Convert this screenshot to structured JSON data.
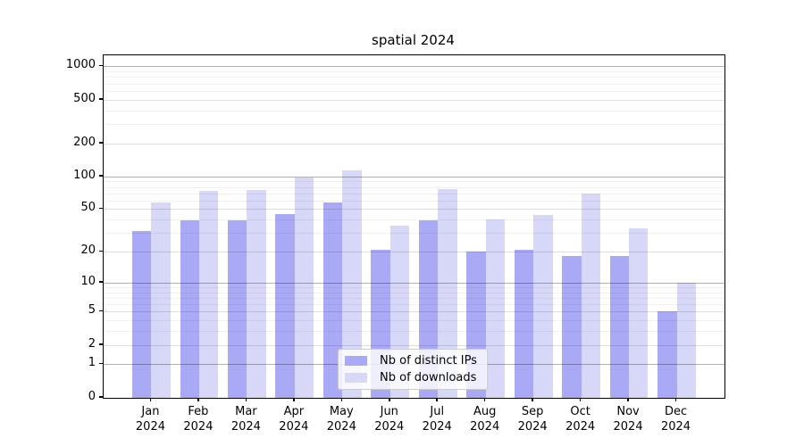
{
  "title": "spatial 2024",
  "chart_data": {
    "type": "bar",
    "title": "spatial 2024",
    "categories": [
      "Jan\n2024",
      "Feb\n2024",
      "Mar\n2024",
      "Apr\n2024",
      "May\n2024",
      "Jun\n2024",
      "Jul\n2024",
      "Aug\n2024",
      "Sep\n2024",
      "Oct\n2024",
      "Nov\n2024",
      "Dec\n2024"
    ],
    "series": [
      {
        "name": "Nb of distinct IPs",
        "color": "#a9a9f5",
        "values": [
          31,
          39,
          39,
          45,
          58,
          21,
          39,
          20,
          21,
          18,
          18,
          5
        ]
      },
      {
        "name": "Nb of downloads",
        "color": "#d7d7f7",
        "values": [
          57,
          74,
          75,
          97,
          113,
          35,
          76,
          40,
          44,
          70,
          33,
          10
        ]
      }
    ],
    "yscale": "log1p",
    "y_major_ticks": [
      0,
      1,
      2,
      5,
      10,
      20,
      50,
      100,
      200,
      500,
      1000
    ],
    "y_minor_ticks": [
      3,
      4,
      6,
      7,
      8,
      9,
      30,
      40,
      60,
      70,
      80,
      90,
      300,
      400,
      600,
      700,
      800,
      900
    ],
    "ylim": [
      0,
      1264
    ],
    "grid": true,
    "legend_position": "bottom-center"
  },
  "colors": {
    "bar_distinct_ips": "#a9a9f5",
    "bar_downloads": "#d7d7f7",
    "spine": "#000000",
    "legend_border": "#cccccc"
  }
}
